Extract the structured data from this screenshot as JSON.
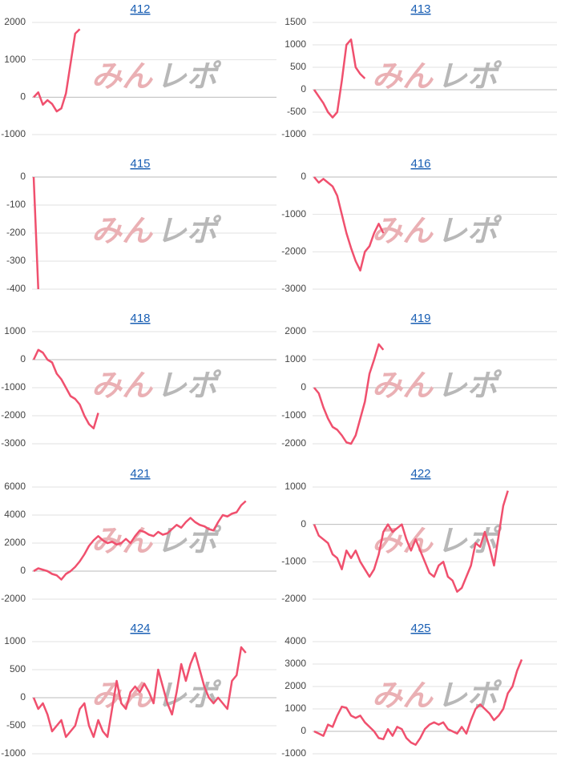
{
  "watermark": [
    "みん",
    "レポ"
  ],
  "chart_data": [
    {
      "type": "line",
      "title": "412",
      "color": "#f0506e",
      "ylim": [
        -1000,
        2000
      ],
      "yticks": [
        -1000,
        0,
        1000,
        2000
      ],
      "grid": true,
      "values": [
        0,
        130,
        -200,
        -80,
        -180,
        -380,
        -300,
        100,
        900,
        1700,
        1820
      ]
    },
    {
      "type": "line",
      "title": "413",
      "color": "#f0506e",
      "ylim": [
        -1000,
        1500
      ],
      "yticks": [
        -1000,
        -500,
        0,
        500,
        1000,
        1500
      ],
      "grid": true,
      "values": [
        0,
        -150,
        -300,
        -500,
        -620,
        -500,
        200,
        1000,
        1120,
        500,
        350,
        250
      ]
    },
    {
      "type": "line",
      "title": "415",
      "color": "#f0506e",
      "ylim": [
        -400,
        0
      ],
      "yticks": [
        -400,
        -300,
        -200,
        -100,
        0
      ],
      "grid": true,
      "values": [
        0,
        -400
      ]
    },
    {
      "type": "line",
      "title": "416",
      "color": "#f0506e",
      "ylim": [
        -3000,
        0
      ],
      "yticks": [
        -3000,
        -2000,
        -1000,
        0
      ],
      "grid": true,
      "values": [
        0,
        -150,
        -50,
        -150,
        -250,
        -500,
        -1000,
        -1500,
        -1900,
        -2250,
        -2500,
        -2000,
        -1850,
        -1500,
        -1250,
        -1500
      ]
    },
    {
      "type": "line",
      "title": "418",
      "color": "#f0506e",
      "ylim": [
        -3000,
        1000
      ],
      "yticks": [
        -3000,
        -2000,
        -1000,
        0,
        1000
      ],
      "grid": true,
      "values": [
        0,
        350,
        250,
        0,
        -100,
        -500,
        -700,
        -1000,
        -1300,
        -1400,
        -1600,
        -2000,
        -2300,
        -2450,
        -1900
      ]
    },
    {
      "type": "line",
      "title": "419",
      "color": "#f0506e",
      "ylim": [
        -2000,
        2000
      ],
      "yticks": [
        -2000,
        -1000,
        0,
        1000,
        2000
      ],
      "grid": true,
      "values": [
        0,
        -200,
        -700,
        -1100,
        -1400,
        -1500,
        -1700,
        -1950,
        -2000,
        -1700,
        -1100,
        -500,
        500,
        1000,
        1550,
        1350
      ]
    },
    {
      "type": "line",
      "title": "421",
      "color": "#f0506e",
      "ylim": [
        -2000,
        6000
      ],
      "yticks": [
        -2000,
        0,
        2000,
        4000,
        6000
      ],
      "grid": true,
      "values": [
        0,
        200,
        100,
        0,
        -200,
        -300,
        -600,
        -200,
        0,
        300,
        700,
        1200,
        1800,
        2200,
        2500,
        2200,
        2000,
        2100,
        1900,
        2000,
        2300,
        2000,
        2500,
        2900,
        2800,
        2600,
        2500,
        2800,
        2600,
        2700,
        3000,
        3300,
        3100,
        3500,
        3800,
        3500,
        3300,
        3200,
        3000,
        2900,
        3500,
        4000,
        3900,
        4100,
        4200,
        4700,
        5000
      ]
    },
    {
      "type": "line",
      "title": "422",
      "color": "#f0506e",
      "ylim": [
        -2000,
        1000
      ],
      "yticks": [
        -2000,
        -1000,
        0,
        1000
      ],
      "grid": true,
      "values": [
        0,
        -300,
        -400,
        -500,
        -800,
        -900,
        -1200,
        -700,
        -900,
        -700,
        -1000,
        -1200,
        -1400,
        -1200,
        -800,
        -200,
        0,
        -200,
        -100,
        0,
        -400,
        -700,
        -400,
        -700,
        -1000,
        -1300,
        -1400,
        -1100,
        -1000,
        -1400,
        -1500,
        -1800,
        -1700,
        -1400,
        -1100,
        -500,
        -600,
        -200,
        -600,
        -1100,
        -300,
        500,
        900
      ]
    },
    {
      "type": "line",
      "title": "424",
      "color": "#f0506e",
      "ylim": [
        -1000,
        1000
      ],
      "yticks": [
        -1000,
        -500,
        0,
        500,
        1000
      ],
      "grid": true,
      "values": [
        0,
        -200,
        -100,
        -300,
        -600,
        -500,
        -400,
        -700,
        -600,
        -500,
        -200,
        -100,
        -500,
        -700,
        -400,
        -600,
        -700,
        -200,
        300,
        -100,
        -200,
        100,
        200,
        100,
        250,
        100,
        -100,
        500,
        200,
        -100,
        -300,
        100,
        600,
        300,
        600,
        800,
        500,
        200,
        0,
        -100,
        0,
        -100,
        -200,
        300,
        400,
        900,
        800
      ]
    },
    {
      "type": "line",
      "title": "425",
      "color": "#f0506e",
      "ylim": [
        -1000,
        4000
      ],
      "yticks": [
        -1000,
        0,
        1000,
        2000,
        3000,
        4000
      ],
      "grid": true,
      "values": [
        0,
        -100,
        -200,
        300,
        200,
        700,
        1100,
        1050,
        700,
        600,
        700,
        400,
        200,
        0,
        -300,
        -350,
        100,
        -200,
        200,
        100,
        -300,
        -500,
        -600,
        -300,
        100,
        300,
        400,
        300,
        400,
        100,
        0,
        -100,
        200,
        -100,
        500,
        1000,
        1200,
        1000,
        800,
        500,
        700,
        1000,
        1700,
        2000,
        2700,
        3200
      ]
    }
  ]
}
